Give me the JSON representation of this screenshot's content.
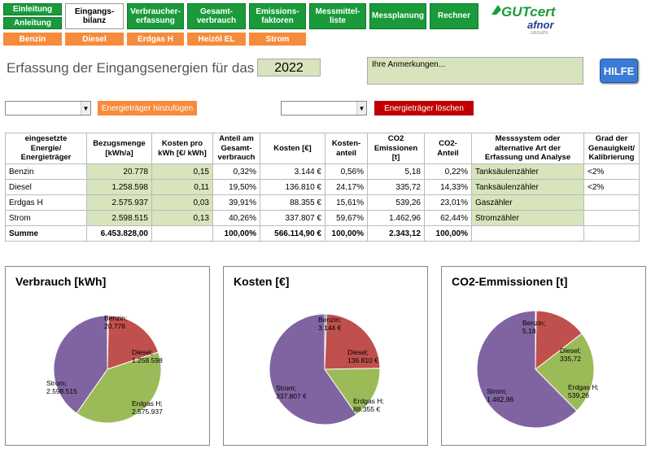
{
  "nav": {
    "einleitung": "Einleitung",
    "anleitung": "Anleitung",
    "eingangsbilanz": "Eingangs-\nbilanz",
    "verbrauchererfassung": "Verbraucher-\nerfassung",
    "gesamtverbrauch": "Gesamt-\nverbrauch",
    "emissionsfaktoren": "Emissions-\nfaktoren",
    "messmittelliste": "Messmittel-\nliste",
    "messplanung": "Messplanung",
    "rechner": "Rechner"
  },
  "subnav": [
    "Benzin",
    "Diesel",
    "Erdgas H",
    "Heizöl EL",
    "Strom"
  ],
  "logo": {
    "text": "GUTcert",
    "sub": "afnor",
    "tag": "GROUPE"
  },
  "title": "Erfassung der Eingangsenergien für das Jahr:",
  "year": "2022",
  "remarks": "Ihre Anmerkungen...",
  "hilfe": "HILFE",
  "add_button": "Energieträger hinzufügen",
  "delete_button": "Energieträger löschen",
  "table": {
    "headers": [
      "eingesetzte Energie/ Energieträger",
      "Bezugsmenge [kWh/a]",
      "Kosten pro kWh [€/ kWh]",
      "Anteil am Gesamt-verbrauch",
      "Kosten [€]",
      "Kosten-anteil",
      "CO2 Emissionen [t]",
      "CO2-Anteil",
      "Messsystem oder alternative Art der Erfassung und Analyse",
      "Grad der Genauigkeit/ Kalibrierung"
    ],
    "rows": [
      [
        "Benzin",
        "20.778",
        "0,15",
        "0,32%",
        "3.144 €",
        "0,56%",
        "5,18",
        "0,22%",
        "Tanksäulenzähler",
        "<2%"
      ],
      [
        "Diesel",
        "1.258.598",
        "0,11",
        "19,50%",
        "136.810 €",
        "24,17%",
        "335,72",
        "14,33%",
        "Tanksäulenzähler",
        "<2%"
      ],
      [
        "Erdgas H",
        "2.575.937",
        "0,03",
        "39,91%",
        "88.355 €",
        "15,61%",
        "539,26",
        "23,01%",
        "Gaszähler",
        ""
      ],
      [
        "Strom",
        "2.598.515",
        "0,13",
        "40,26%",
        "337.807 €",
        "59,67%",
        "1.462,96",
        "62,44%",
        "Stromzähler",
        ""
      ]
    ],
    "sum": [
      "Summe",
      "6.453.828,00",
      "",
      "100,00%",
      "566.114,90 €",
      "100,00%",
      "2.343,12",
      "100,00%",
      "",
      ""
    ]
  },
  "colors": {
    "green": "#1a9a3a",
    "orange": "#f68b3c",
    "input": "#d8e4bc",
    "red": "#c00000",
    "benzin": "#4f81bd",
    "diesel": "#c0504d",
    "erdgas": "#9bbb59",
    "strom": "#8064a2"
  },
  "chart_data": [
    {
      "type": "pie",
      "title": "Verbrauch [kWh]",
      "categories": [
        "Benzin",
        "Diesel",
        "Erdgas H",
        "Strom"
      ],
      "values": [
        20778,
        1258598,
        2575937,
        2598515
      ],
      "labels": [
        "Benzin;\n20.778",
        "Diesel;\n1.258.598",
        "Erdgas H;\n2.575.937",
        "Strom;\n2.598.515"
      ]
    },
    {
      "type": "pie",
      "title": "Kosten [€]",
      "categories": [
        "Benzin",
        "Diesel",
        "Erdgas H",
        "Strom"
      ],
      "values": [
        3144,
        136810,
        88355,
        337807
      ],
      "labels": [
        "Benzin;\n3.144 €",
        "Diesel;\n136.810 €",
        "Erdgas H;\n88.355 €",
        "Strom;\n337.807 €"
      ]
    },
    {
      "type": "pie",
      "title": "CO2-Emmissionen [t]",
      "categories": [
        "Benzin",
        "Diesel",
        "Erdgas H",
        "Strom"
      ],
      "values": [
        5.18,
        335.72,
        539.26,
        1462.96
      ],
      "labels": [
        "Benzin;\n5,18",
        "Diesel;\n335,72",
        "Erdgas H;\n539,26",
        "Strom;\n1.462,96"
      ]
    }
  ]
}
